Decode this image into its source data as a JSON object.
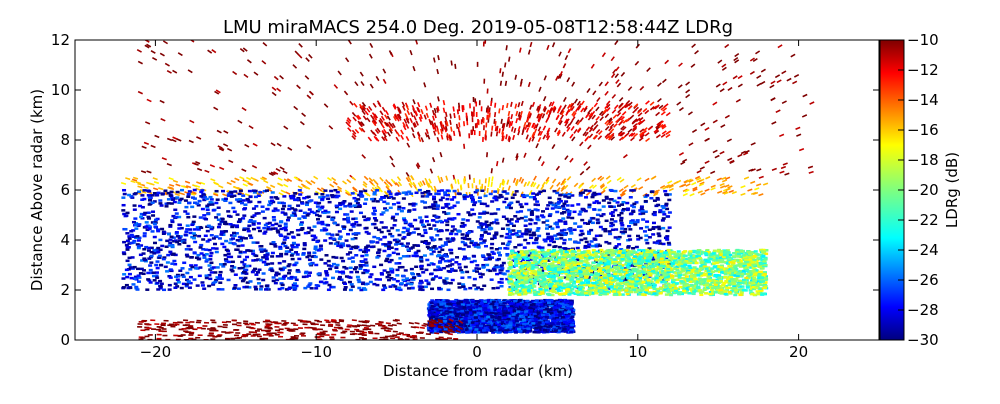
{
  "chart_data": {
    "type": "heatmap",
    "title": "LMU miraMACS 254.0 Deg. 2019-05-08T12:58:44Z  LDRg",
    "xlabel": "Distance from radar (km)",
    "ylabel": "Distance Above radar  (km)",
    "xlim": [
      -25,
      25
    ],
    "ylim": [
      0,
      12
    ],
    "x_ticks": [
      -20,
      -10,
      0,
      10,
      20
    ],
    "x_tick_labels": [
      "−20",
      "−10",
      "0",
      "10",
      "20"
    ],
    "y_ticks": [
      0,
      2,
      4,
      6,
      8,
      10,
      12
    ],
    "y_tick_labels": [
      "0",
      "2",
      "4",
      "6",
      "8",
      "10",
      "12"
    ],
    "colorbar": {
      "label": "LDRg (dB)",
      "range": [
        -30,
        -10
      ],
      "ticks": [
        -10,
        -12,
        -14,
        -16,
        -18,
        -20,
        -22,
        -24,
        -26,
        -28,
        -30
      ],
      "tick_labels": [
        "−10",
        "−12",
        "−14",
        "−16",
        "−18",
        "−20",
        "−22",
        "−24",
        "−26",
        "−28",
        "−30"
      ],
      "colormap": [
        "#00007f",
        "#0000ff",
        "#007fff",
        "#00ffff",
        "#7fff7f",
        "#ffff00",
        "#ff7f00",
        "#ff0000",
        "#7f0000"
      ]
    },
    "regions": [
      {
        "name": "upper-noise",
        "desc": "sparse dark-red speckle",
        "x_range": [
          -21,
          21
        ],
        "y_range": [
          6.5,
          12
        ],
        "ldr": -10
      },
      {
        "name": "ice-layer-9km",
        "desc": "dense red/orange band",
        "x_range": [
          -8,
          12
        ],
        "y_range": [
          8.0,
          9.5
        ],
        "ldr": -12
      },
      {
        "name": "cloud-top-edge",
        "desc": "yellow/orange edge",
        "x_range": [
          -22,
          18
        ],
        "y_range": [
          5.8,
          6.5
        ],
        "ldr": -16
      },
      {
        "name": "main-cloud",
        "desc": "deep blue stratiform layer",
        "x_range": [
          -22,
          12
        ],
        "y_range": [
          2.0,
          6.0
        ],
        "ldr": -28
      },
      {
        "name": "melting-layer",
        "desc": "cyan/green/yellow mix",
        "x_range": [
          2,
          18
        ],
        "y_range": [
          1.8,
          3.6
        ],
        "ldr": -20
      },
      {
        "name": "lower-cloud",
        "desc": "blue patch near radar",
        "x_range": [
          -3,
          6
        ],
        "y_range": [
          0.3,
          1.6
        ],
        "ldr": -28
      },
      {
        "name": "ground-clutter",
        "desc": "dark red near surface",
        "x_range": [
          -21,
          -1
        ],
        "y_range": [
          0,
          0.8
        ],
        "ldr": -10
      }
    ]
  }
}
